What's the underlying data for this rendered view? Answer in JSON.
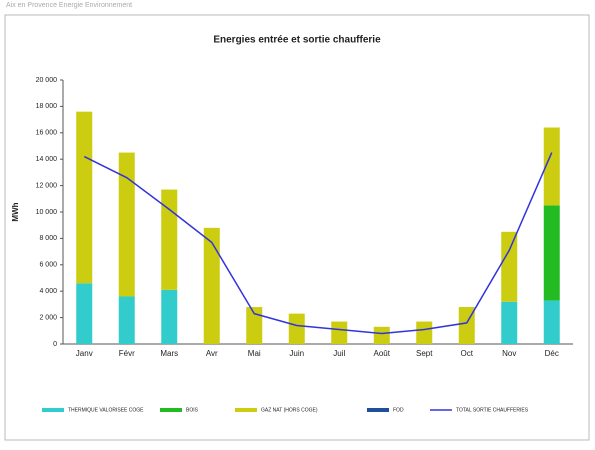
{
  "header": "Aix en Provence Energie Environnement",
  "chart_data": {
    "type": "stacked-bar-line",
    "title": "Energies entrée et sortie chaufferie",
    "y_label": "MWh",
    "categories": [
      "Janv",
      "Févr",
      "Mars",
      "Avr",
      "Mai",
      "Juin",
      "Juil",
      "Août",
      "Sept",
      "Oct",
      "Nov",
      "Déc"
    ],
    "ylim": [
      0,
      20000
    ],
    "yticks": [
      0,
      {
        "value": 2000,
        "label": "2 000"
      },
      {
        "value": 4000,
        "label": "4 000"
      },
      {
        "value": 6000,
        "label": "6 000"
      },
      {
        "value": 8000,
        "label": "8 000"
      },
      {
        "value": 10000,
        "label": "10 000"
      },
      {
        "value": 12000,
        "label": "12 000"
      },
      {
        "value": 14000,
        "label": "14 000"
      },
      {
        "value": 16000,
        "label": "16 000"
      },
      {
        "value": 18000,
        "label": "18 000"
      },
      {
        "value": 20000,
        "label": "20 000"
      }
    ],
    "grid": false,
    "legend": "bottom",
    "series": [
      {
        "name": "THERMIQUE VALORISEE COGE",
        "color": "#33cccc",
        "kind": "bar",
        "values": [
          4600,
          3600,
          4100,
          0,
          0,
          0,
          0,
          0,
          0,
          0,
          3200,
          3300
        ]
      },
      {
        "name": "BOIS",
        "color": "#22bb22",
        "kind": "bar",
        "values": [
          0,
          0,
          0,
          0,
          0,
          0,
          0,
          0,
          0,
          0,
          0,
          7200
        ]
      },
      {
        "name": "GAZ NAT (HORS COGE)",
        "color": "#cccc11",
        "kind": "bar",
        "values": [
          13000,
          10900,
          7600,
          8800,
          2800,
          2300,
          1700,
          1300,
          1700,
          2800,
          5300,
          5900
        ]
      },
      {
        "name": "FOD",
        "color": "#1f4e9a",
        "kind": "bar",
        "values": [
          0,
          0,
          0,
          0,
          0,
          0,
          0,
          0,
          0,
          0,
          0,
          0
        ]
      },
      {
        "name": "TOTAL SORTIE CHAUFFERIES",
        "color": "#3333dd",
        "kind": "line",
        "values": [
          14200,
          12600,
          10200,
          7700,
          2300,
          1400,
          1100,
          800,
          1100,
          1600,
          7100,
          14500
        ]
      }
    ]
  }
}
